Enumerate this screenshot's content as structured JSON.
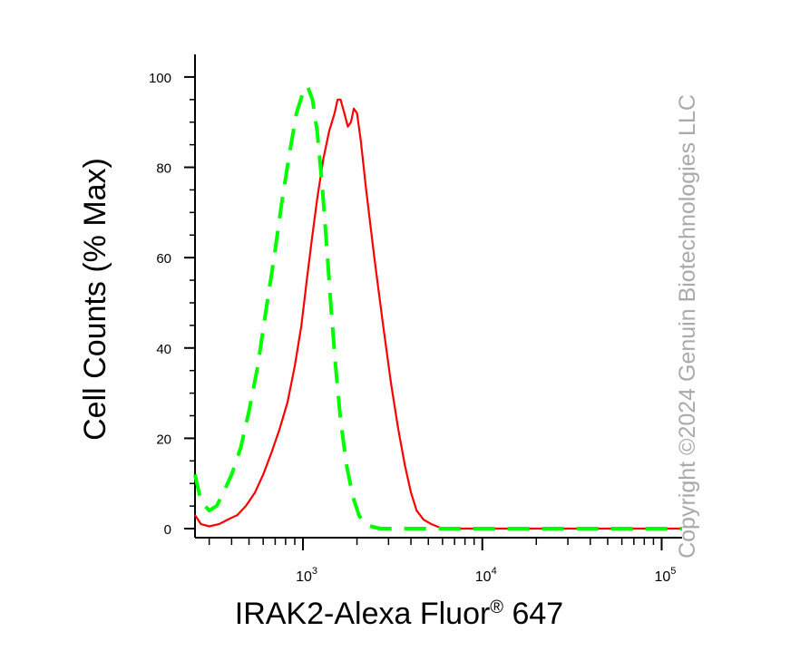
{
  "chart_data": {
    "type": "line",
    "title": "",
    "xlabel_main": "IRAK2-Alexa Fluor",
    "xlabel_sup": "®",
    "xlabel_tail": " 647",
    "ylabel": "Cell Counts (% Max)",
    "x_scale": "log",
    "xlim": [
      250,
      130000
    ],
    "ylim": [
      -2,
      105
    ],
    "y_ticks": [
      0,
      20,
      40,
      60,
      80,
      100
    ],
    "x_ticks": [
      {
        "value": 1000,
        "base": "10",
        "exp": "3"
      },
      {
        "value": 10000,
        "base": "10",
        "exp": "4"
      },
      {
        "value": 100000,
        "base": "10",
        "exp": "5"
      }
    ],
    "grid": false,
    "legend": "none",
    "series": [
      {
        "color": "#ff0000",
        "style": "solid",
        "x": [
          250,
          270,
          300,
          340,
          380,
          430,
          480,
          540,
          600,
          670,
          740,
          820,
          900,
          980,
          1050,
          1120,
          1200,
          1300,
          1400,
          1500,
          1560,
          1620,
          1700,
          1780,
          1850,
          1920,
          2000,
          2100,
          2250,
          2500,
          2800,
          3100,
          3400,
          3700,
          4000,
          4300,
          4700,
          5200,
          6000,
          8000,
          12000,
          20000,
          50000,
          130000
        ],
        "y": [
          3,
          1,
          0.5,
          1,
          2,
          3,
          5,
          8,
          12,
          17,
          22,
          28,
          36,
          45,
          55,
          64,
          73,
          82,
          88,
          92,
          95,
          95,
          92,
          89,
          90,
          93,
          92,
          86,
          75,
          60,
          45,
          32,
          22,
          14,
          8,
          4,
          2,
          1,
          0,
          0,
          0,
          0,
          0,
          0
        ]
      },
      {
        "color": "#00ff00",
        "style": "dashed",
        "x": [
          250,
          270,
          300,
          330,
          360,
          400,
          450,
          500,
          560,
          620,
          690,
          760,
          840,
          920,
          990,
          1060,
          1130,
          1200,
          1280,
          1360,
          1440,
          1520,
          1620,
          1750,
          1900,
          2050,
          2200,
          2400,
          2700,
          3000,
          4000,
          8000,
          20000,
          130000
        ],
        "y": [
          12,
          6,
          4,
          5,
          8,
          12,
          18,
          26,
          36,
          48,
          60,
          72,
          83,
          92,
          96,
          98,
          95,
          88,
          76,
          62,
          48,
          36,
          24,
          14,
          7,
          3,
          1,
          0.5,
          0,
          0,
          0,
          0,
          0,
          0
        ]
      }
    ]
  },
  "copyright": "Copyright ©2024 Genuin Biotechnologies LLC"
}
